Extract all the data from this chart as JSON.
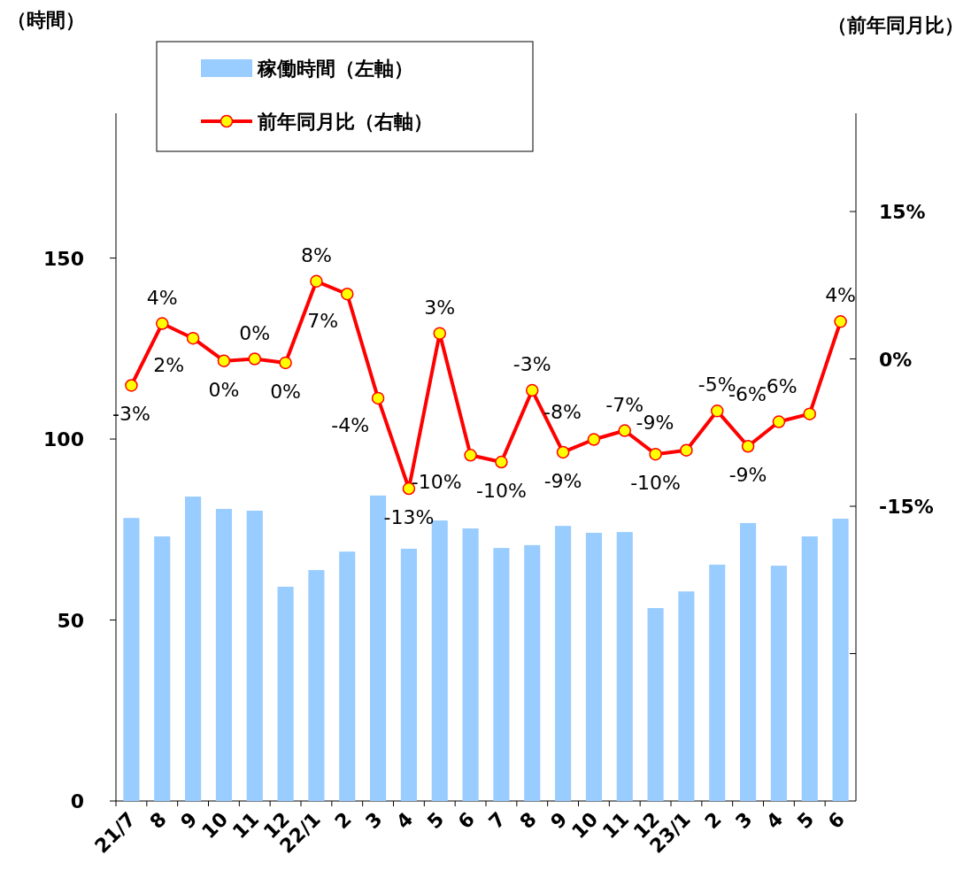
{
  "chart_data": {
    "type": "bar",
    "ylabel": "（時間）",
    "y2label": "（前年同月比）",
    "legend": "top left",
    "categories": [
      "21/7",
      "8",
      "9",
      "10",
      "11",
      "12",
      "22/1",
      "2",
      "3",
      "4",
      "5",
      "6",
      "7",
      "8",
      "9",
      "10",
      "11",
      "12",
      "23/1",
      "2",
      "3",
      "4",
      "5",
      "6"
    ],
    "ylim": [
      0,
      190
    ],
    "yticks": [
      0,
      50,
      100,
      150
    ],
    "y2lim": [
      -45,
      25
    ],
    "y2ticks": [
      {
        "value": 15,
        "label": "15%"
      },
      {
        "value": 0,
        "label": "0%"
      },
      {
        "value": -15,
        "label": "-15%"
      },
      {
        "value": -30,
        "label": null
      }
    ],
    "series": [
      {
        "name": "稼働時間（左軸）",
        "color": "#99ccff",
        "values": [
          78.2,
          73.1,
          84.1,
          80.7,
          80.2,
          59.2,
          63.8,
          68.9,
          84.4,
          69.7,
          77.5,
          75.3,
          69.9,
          70.7,
          76.0,
          74.1,
          74.3,
          53.3,
          57.9,
          65.3,
          76.8,
          65.0,
          73.1,
          78.0
        ]
      },
      {
        "name": "前年同月比（右軸）",
        "type": "line",
        "axis": "y2",
        "color": "#ff0000",
        "marker": "circle",
        "values": [
          -2.7,
          3.6,
          2.1,
          -0.2,
          0.0,
          -0.4,
          7.9,
          6.6,
          -4.0,
          -13.2,
          2.6,
          -9.8,
          -10.5,
          -3.2,
          -9.5,
          -8.2,
          -7.3,
          -9.7,
          -9.3,
          -5.3,
          -8.9,
          -6.4,
          -5.6,
          3.8
        ],
        "value_labels": [
          "-3%",
          "4%",
          "2%",
          "0%",
          "0%",
          "0%",
          "8%",
          "7%",
          "-4%",
          "-13%",
          "3%",
          "-10%",
          "-10%",
          "-3%",
          "-9%",
          "-8%",
          "-7%",
          "-10%",
          "-9%",
          "-5%",
          "-9%",
          "-6%",
          "-6%",
          "4%"
        ]
      }
    ]
  }
}
